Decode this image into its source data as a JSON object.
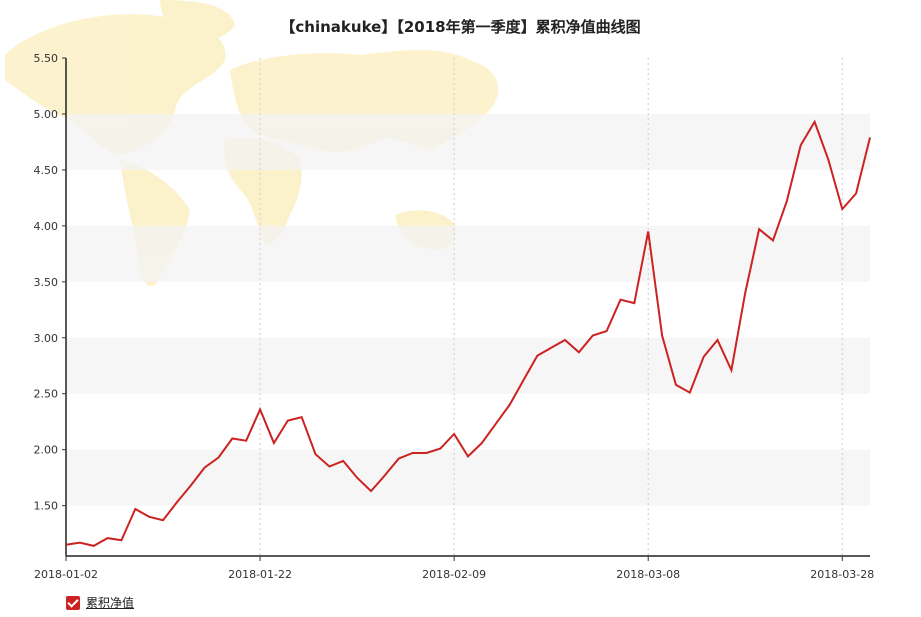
{
  "chart_data": {
    "type": "line",
    "title": "【chinakuke】【2018年第一季度】累积净值曲线图",
    "xlabel": "",
    "ylabel": "",
    "ylim": [
      1.05,
      5.5
    ],
    "yticks": [
      "1.50",
      "2.00",
      "2.50",
      "3.00",
      "3.50",
      "4.00",
      "4.50",
      "5.00",
      "5.50"
    ],
    "xticks": [
      "2018-01-02",
      "2018-01-22",
      "2018-02-09",
      "2018-03-08",
      "2018-03-28"
    ],
    "grid": "horizontal bands, dotted vertical lines at x ticks",
    "legend_position": "bottom-left",
    "series": [
      {
        "name": "累积净值",
        "color": "#cc2222",
        "x": [
          "2018-01-02",
          "2018-01-03",
          "2018-01-04",
          "2018-01-05",
          "2018-01-08",
          "2018-01-09",
          "2018-01-10",
          "2018-01-11",
          "2018-01-12",
          "2018-01-15",
          "2018-01-16",
          "2018-01-17",
          "2018-01-18",
          "2018-01-19",
          "2018-01-22",
          "2018-01-23",
          "2018-01-24",
          "2018-01-25",
          "2018-01-26",
          "2018-01-29",
          "2018-01-30",
          "2018-01-31",
          "2018-02-01",
          "2018-02-02",
          "2018-02-05",
          "2018-02-06",
          "2018-02-07",
          "2018-02-08",
          "2018-02-09",
          "2018-02-12",
          "2018-02-13",
          "2018-02-14",
          "2018-02-22",
          "2018-02-23",
          "2018-02-26",
          "2018-02-27",
          "2018-02-28",
          "2018-03-01",
          "2018-03-02",
          "2018-03-05",
          "2018-03-06",
          "2018-03-07",
          "2018-03-08",
          "2018-03-09",
          "2018-03-12",
          "2018-03-13",
          "2018-03-14",
          "2018-03-15",
          "2018-03-16",
          "2018-03-19",
          "2018-03-20",
          "2018-03-21",
          "2018-03-22",
          "2018-03-23",
          "2018-03-26",
          "2018-03-27",
          "2018-03-28",
          "2018-03-29",
          "2018-03-30"
        ],
        "values": [
          1.15,
          1.17,
          1.14,
          1.21,
          1.19,
          1.47,
          1.4,
          1.37,
          1.53,
          1.68,
          1.84,
          1.93,
          2.1,
          2.08,
          2.36,
          2.06,
          2.26,
          2.29,
          1.96,
          1.85,
          1.9,
          1.75,
          1.63,
          1.77,
          1.92,
          1.97,
          1.97,
          2.01,
          2.14,
          1.94,
          2.06,
          2.23,
          2.4,
          2.62,
          2.84,
          2.91,
          2.98,
          2.87,
          3.02,
          3.06,
          3.34,
          3.31,
          3.95,
          3.02,
          2.58,
          2.51,
          2.83,
          2.98,
          2.71,
          3.4,
          3.97,
          3.87,
          4.22,
          4.72,
          4.93,
          4.59,
          4.15,
          4.29,
          4.79
        ]
      }
    ]
  }
}
